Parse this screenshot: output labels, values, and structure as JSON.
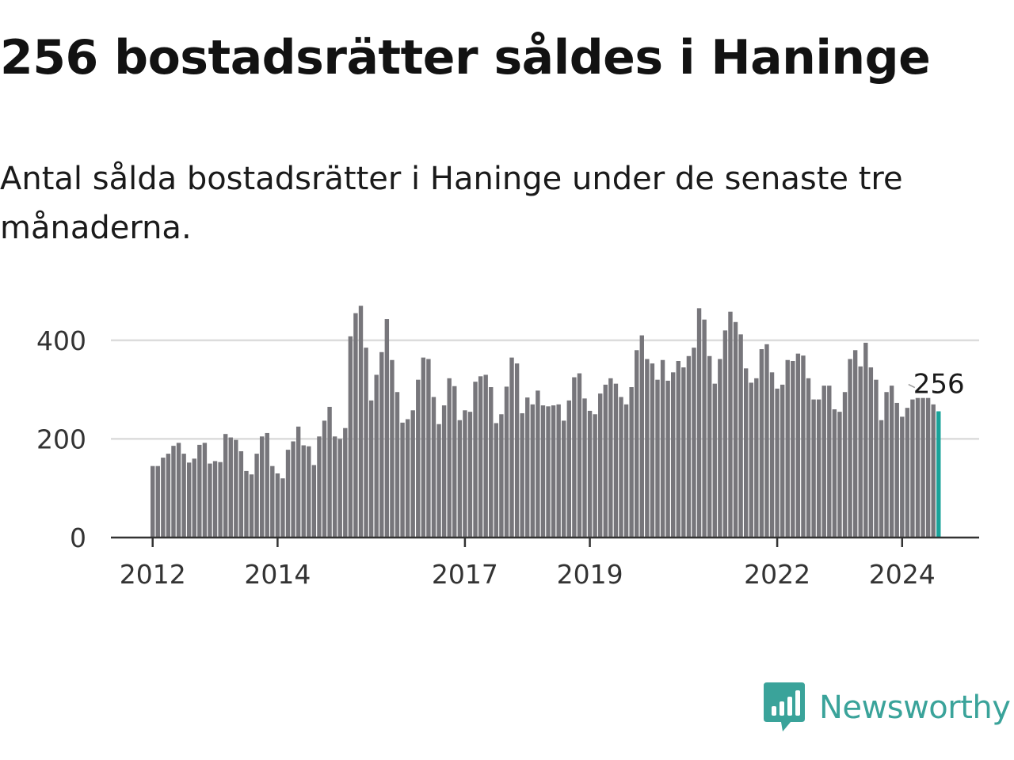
{
  "header": {
    "title": "256 bostadsrätter såldes i Haninge",
    "subtitle": "Antal sålda bostadsrätter i Haninge under de senaste tre månaderna."
  },
  "branding": {
    "logo_text": "Newsworthy",
    "logo_icon": "bar-chart-speech-bubble-icon",
    "color": "#3aa39a"
  },
  "colors": {
    "bar": "#77767b",
    "highlight": "#1aa39a",
    "grid": "#dcdcdc",
    "axis": "#333333"
  },
  "chart_data": {
    "type": "bar",
    "title": "256 bostadsrätter såldes i Haninge",
    "subtitle": "Antal sålda bostadsrätter i Haninge under de senaste tre månaderna.",
    "xlabel": "",
    "ylabel": "",
    "ylim": [
      0,
      480
    ],
    "y_ticks": [
      0,
      200,
      400
    ],
    "y_tick_labels": [
      "0",
      "200",
      "400"
    ],
    "x_ticks": [
      {
        "index": 0,
        "label": "2012"
      },
      {
        "index": 24,
        "label": "2014"
      },
      {
        "index": 60,
        "label": "2017"
      },
      {
        "index": 84,
        "label": "2019"
      },
      {
        "index": 120,
        "label": "2022"
      },
      {
        "index": 144,
        "label": "2024"
      }
    ],
    "grid": true,
    "start_label": "2012-01",
    "values": [
      145,
      145,
      162,
      170,
      186,
      192,
      170,
      152,
      160,
      188,
      192,
      150,
      155,
      153,
      210,
      203,
      198,
      175,
      135,
      128,
      170,
      205,
      212,
      145,
      130,
      120,
      178,
      195,
      225,
      187,
      185,
      147,
      205,
      237,
      265,
      205,
      200,
      222,
      408,
      455,
      470,
      385,
      278,
      330,
      376,
      443,
      360,
      295,
      233,
      240,
      258,
      320,
      365,
      362,
      285,
      230,
      268,
      323,
      307,
      238,
      258,
      255,
      316,
      327,
      330,
      305,
      232,
      250,
      306,
      365,
      353,
      252,
      284,
      270,
      298,
      268,
      266,
      268,
      270,
      237,
      278,
      325,
      333,
      282,
      257,
      250,
      292,
      310,
      323,
      312,
      285,
      270,
      305,
      380,
      410,
      362,
      353,
      320,
      360,
      318,
      335,
      358,
      345,
      368,
      385,
      465,
      442,
      368,
      312,
      362,
      420,
      458,
      437,
      412,
      343,
      314,
      323,
      382,
      392,
      335,
      302,
      310,
      360,
      358,
      373,
      369,
      323,
      280,
      280,
      308,
      308,
      260,
      255,
      295,
      362,
      380,
      347,
      395,
      345,
      320,
      238,
      295,
      308,
      273,
      245,
      263,
      280,
      283,
      283,
      283,
      270,
      256
    ],
    "highlight_index": 151,
    "highlight_label": "256"
  }
}
